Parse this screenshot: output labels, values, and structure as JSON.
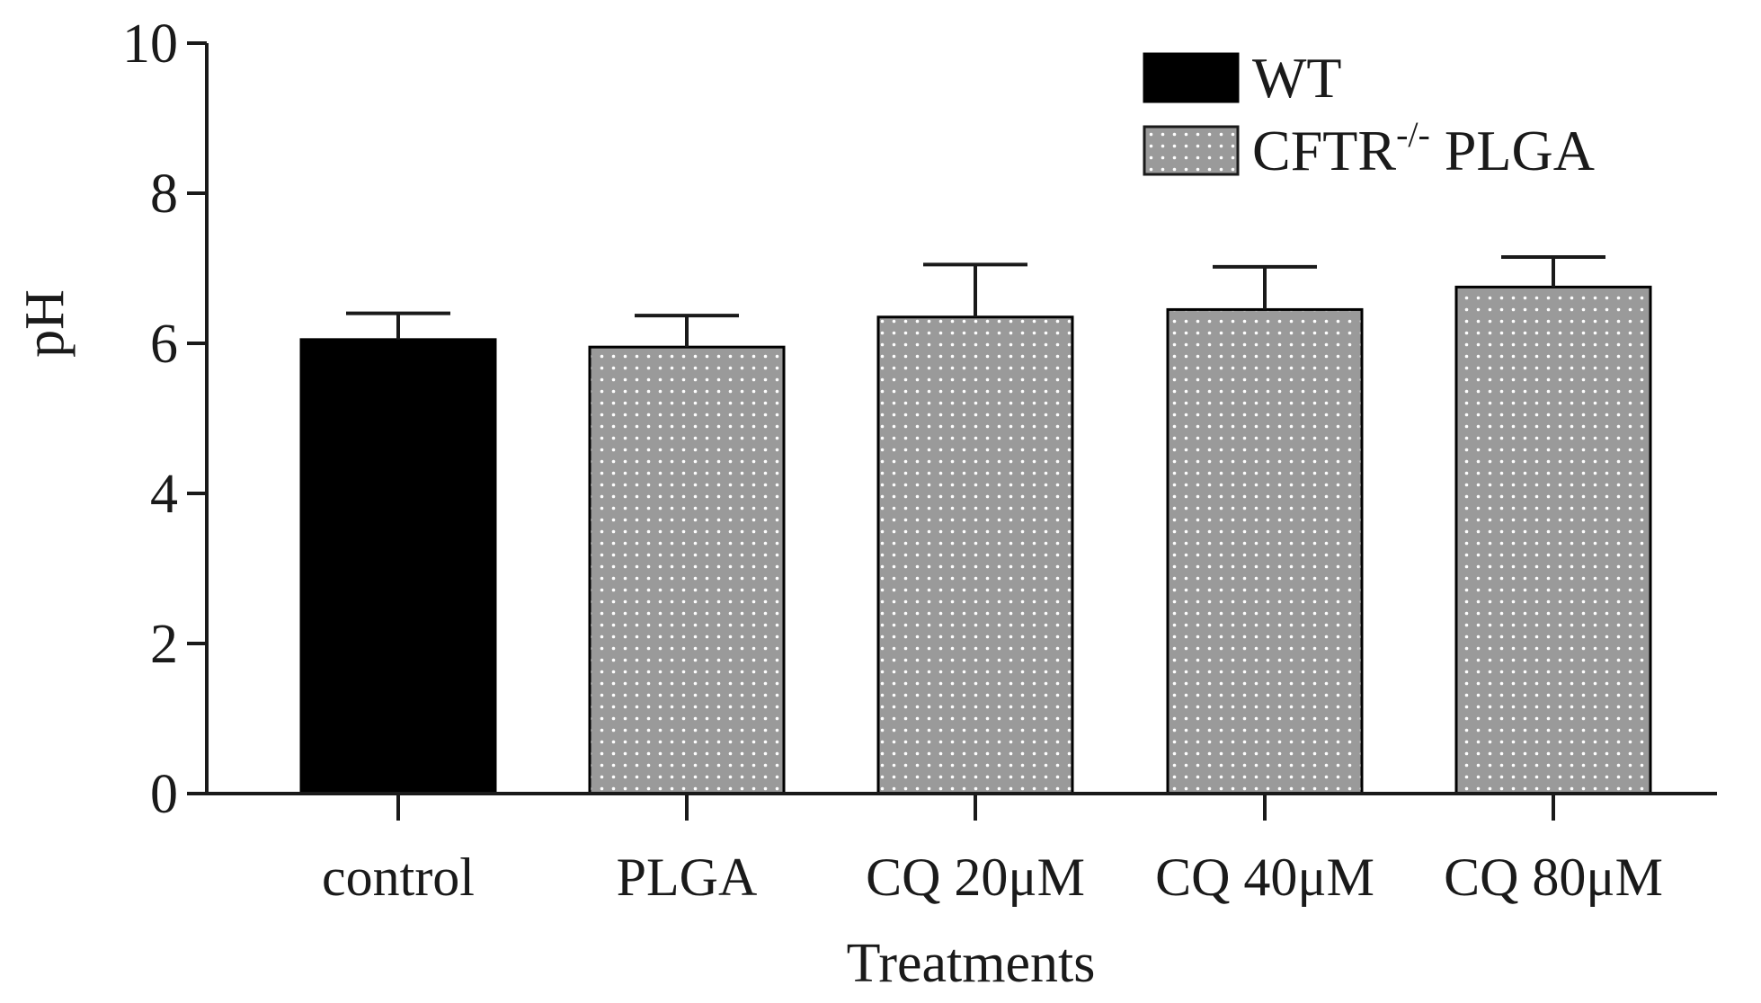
{
  "chart_data": {
    "type": "bar",
    "xlabel": "Treatments",
    "ylabel": "pH",
    "ylim": [
      0,
      10
    ],
    "yticks": [
      0,
      2,
      4,
      6,
      8,
      10
    ],
    "ytick_labels": [
      "0",
      "2",
      "4",
      "6",
      "8",
      "10"
    ],
    "categories": [
      "control",
      "PLGA",
      "CQ 20μM",
      "CQ 40μM",
      "CQ 80μM"
    ],
    "bars": [
      {
        "category": "control",
        "series": "WT",
        "value": 6.05,
        "error": 0.35
      },
      {
        "category": "PLGA",
        "series": "CFTR-/- PLGA",
        "value": 5.95,
        "error": 0.42
      },
      {
        "category": "CQ 20μM",
        "series": "CFTR-/- PLGA",
        "value": 6.35,
        "error": 0.7
      },
      {
        "category": "CQ 40μM",
        "series": "CFTR-/- PLGA",
        "value": 6.45,
        "error": 0.57
      },
      {
        "category": "CQ 80μM",
        "series": "CFTR-/- PLGA",
        "value": 6.75,
        "error": 0.4
      }
    ],
    "legend": {
      "position": "top-right",
      "entries": [
        {
          "name": "WT",
          "label": "WT",
          "color": "#000000",
          "pattern": "solid"
        },
        {
          "name": "CFTR-/- PLGA",
          "label_main": "CFTR",
          "label_sup": "-/-",
          "label_rest": " PLGA",
          "color": "#9a9a9a",
          "pattern": "dotted"
        }
      ]
    },
    "colors": {
      "wt": "#000000",
      "cftr": "#9a9a9a",
      "dot": "#ffffff",
      "axis": "#1a1a1a"
    }
  }
}
